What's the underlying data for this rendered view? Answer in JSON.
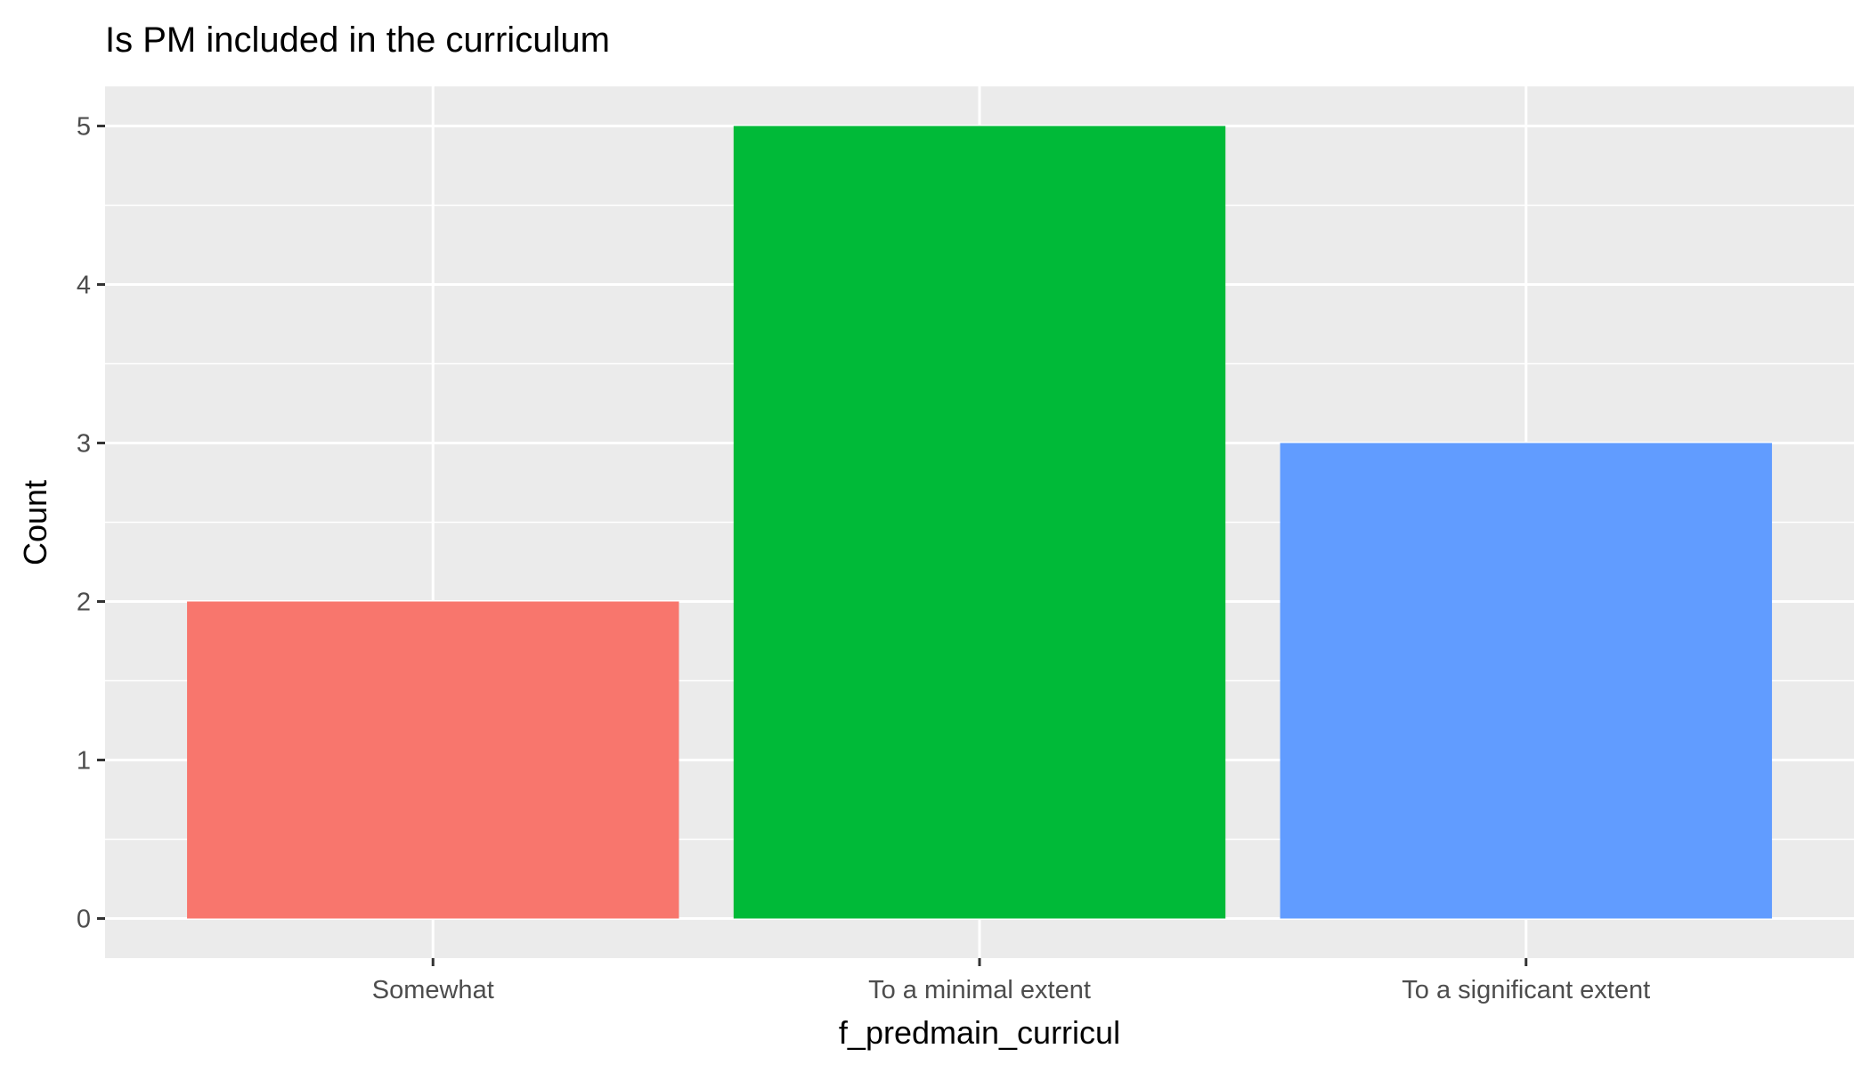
{
  "chart_data": {
    "type": "bar",
    "title": "Is PM included in the curriculum",
    "xlabel": "f_predmain_curricul",
    "ylabel": "Count",
    "categories": [
      "Somewhat",
      "To a minimal extent",
      "To a significant extent"
    ],
    "values": [
      2,
      5,
      3
    ],
    "colors": [
      "#F8766D",
      "#00BA38",
      "#619CFF"
    ],
    "ylim": [
      -0.25,
      5.25
    ],
    "yticks": [
      0,
      1,
      2,
      3,
      4,
      5
    ],
    "ytick_labels": [
      "0",
      "1",
      "2",
      "3",
      "4",
      "5"
    ],
    "grid": true,
    "legend": "none",
    "panel_background": "#EBEBEB"
  }
}
